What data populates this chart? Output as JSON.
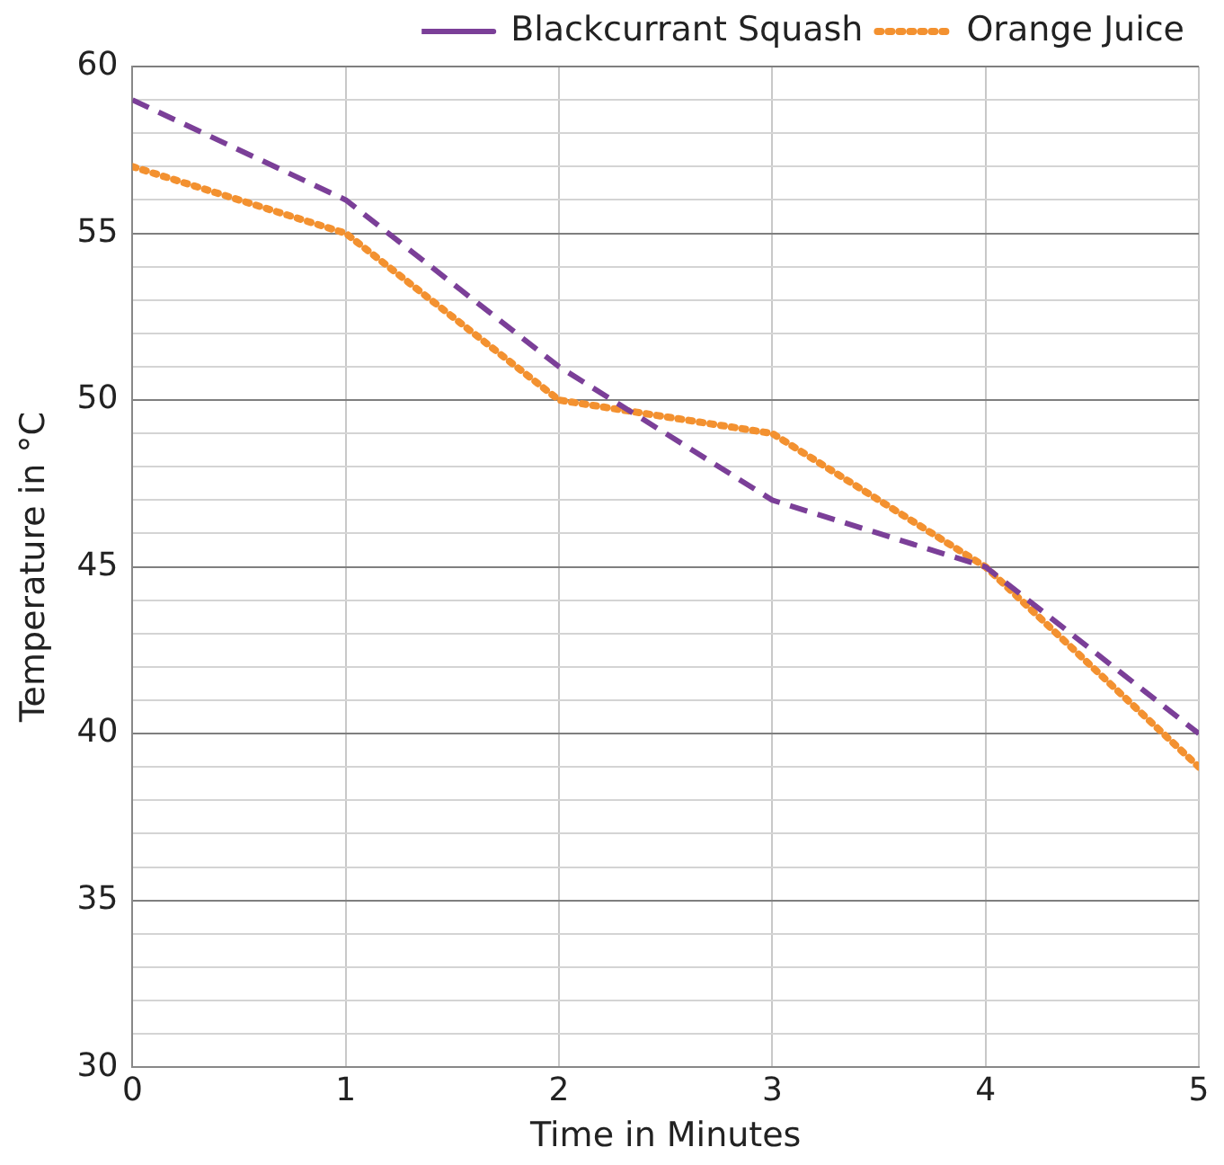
{
  "chart_data": {
    "type": "line",
    "xlabel": "Time in Minutes",
    "ylabel": "Temperature in °C",
    "x": [
      0,
      1,
      2,
      3,
      4,
      5
    ],
    "series": [
      {
        "name": "Blackcurrant Squash",
        "color": "#7b3f98",
        "values": [
          59,
          56,
          51,
          47,
          45,
          40
        ],
        "line_style": "dashed"
      },
      {
        "name": "Orange Juice",
        "color": "#f39130",
        "values": [
          57,
          55,
          50,
          49,
          45,
          39
        ],
        "line_style": "dotted"
      }
    ],
    "xlim": [
      0,
      5
    ],
    "xticks": [
      0,
      1,
      2,
      3,
      4,
      5
    ],
    "ylim": [
      30,
      60
    ],
    "yticks": [
      30,
      {
        "value": 31,
        "label": null
      },
      {
        "value": 32,
        "label": null
      },
      {
        "value": 33,
        "label": null
      },
      {
        "value": 34,
        "label": null
      },
      35,
      {
        "value": 36,
        "label": null
      },
      {
        "value": 37,
        "label": null
      },
      {
        "value": 38,
        "label": null
      },
      {
        "value": 39,
        "label": null
      },
      40,
      {
        "value": 41,
        "label": null
      },
      {
        "value": 42,
        "label": null
      },
      {
        "value": 43,
        "label": null
      },
      {
        "value": 44,
        "label": null
      },
      45,
      {
        "value": 46,
        "label": null
      },
      {
        "value": 47,
        "label": null
      },
      {
        "value": 48,
        "label": null
      },
      {
        "value": 49,
        "label": null
      },
      50,
      {
        "value": 51,
        "label": null
      },
      {
        "value": 52,
        "label": null
      },
      {
        "value": 53,
        "label": null
      },
      {
        "value": 54,
        "label": null
      },
      55,
      {
        "value": 56,
        "label": null
      },
      {
        "value": 57,
        "label": null
      },
      {
        "value": 58,
        "label": null
      },
      {
        "value": 59,
        "label": null
      },
      60
    ],
    "grid": true,
    "legend": "top right",
    "marker": "none"
  }
}
